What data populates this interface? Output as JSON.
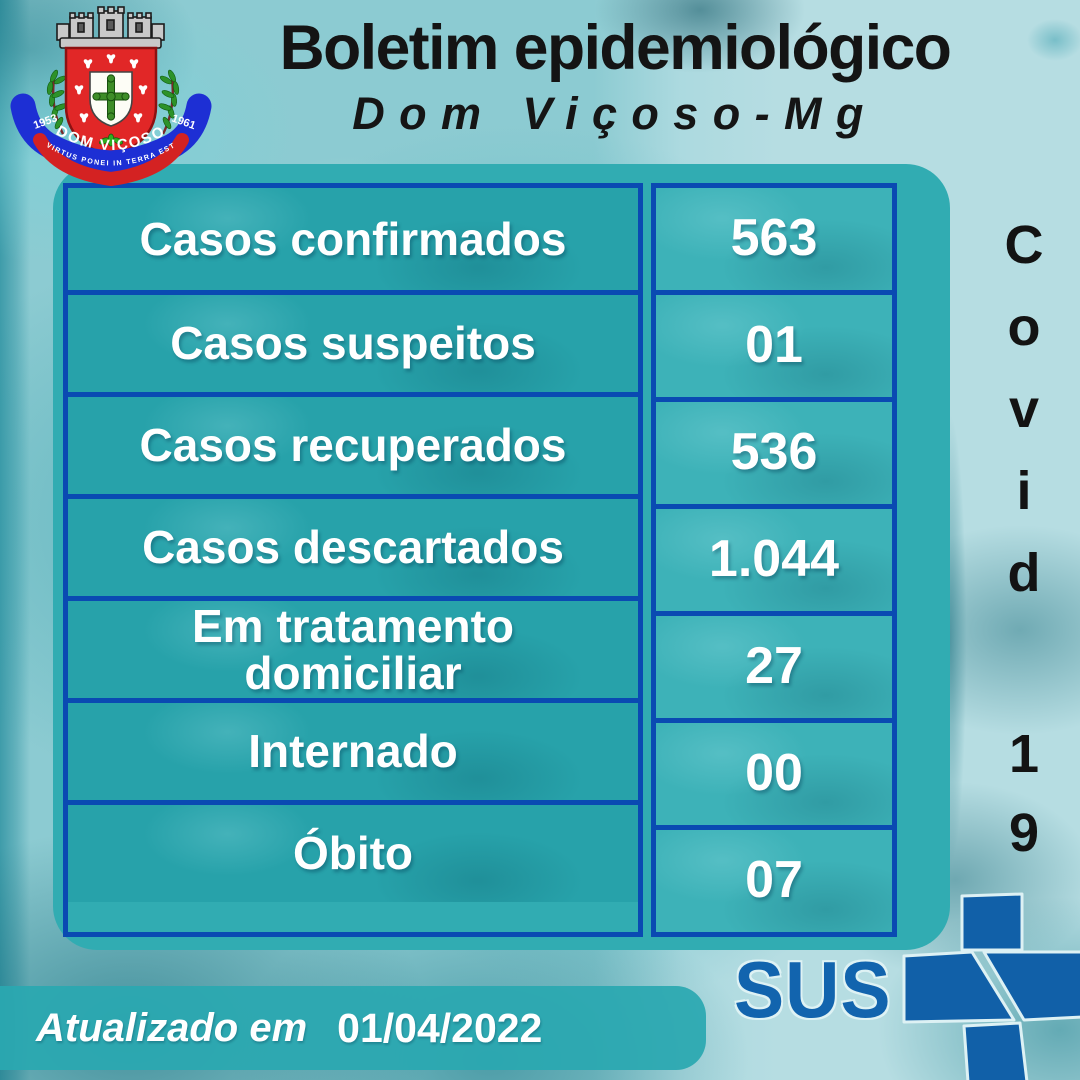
{
  "header": {
    "title": "Boletim epidemiológico",
    "subtitle": "Dom Viçoso-Mg"
  },
  "crest": {
    "name": "Dom Viçoso municipal coat of arms",
    "banner_text": "DOM  VIÇOSO",
    "year_left": "1953",
    "year_right": "1961",
    "motto": "VIRTUS PONEI IN TERRA EST"
  },
  "table": {
    "rows": [
      {
        "label": "Casos confirmados",
        "value": "563"
      },
      {
        "label": "Casos suspeitos",
        "value": "01"
      },
      {
        "label": "Casos recuperados",
        "value": "536"
      },
      {
        "label": "Casos descartados",
        "value": "1.044"
      },
      {
        "label": "Em tratamento domiciliar",
        "value": "27"
      },
      {
        "label": "Internado",
        "value": "00"
      },
      {
        "label": "Óbito",
        "value": "07"
      }
    ]
  },
  "side_label": {
    "letters": [
      "C",
      "o",
      "v",
      "i",
      "d"
    ],
    "digits": [
      "1",
      "9"
    ]
  },
  "footer": {
    "updated_label": "Atualizado em",
    "updated_date": "01/04/2022"
  },
  "logos": {
    "sus_text": "SUS"
  },
  "colors": {
    "panel_teal": "#31acb2",
    "table_border_blue": "#0a4ab2",
    "background_light": "#b6dde2",
    "title_black": "#141414",
    "sus_blue": "#1264ae",
    "crest_ribbon_blue": "#1d2fd4",
    "crest_ribbon_red": "#d42222",
    "crest_shield_red": "#e12727",
    "crest_cross_green": "#3e8d28"
  }
}
